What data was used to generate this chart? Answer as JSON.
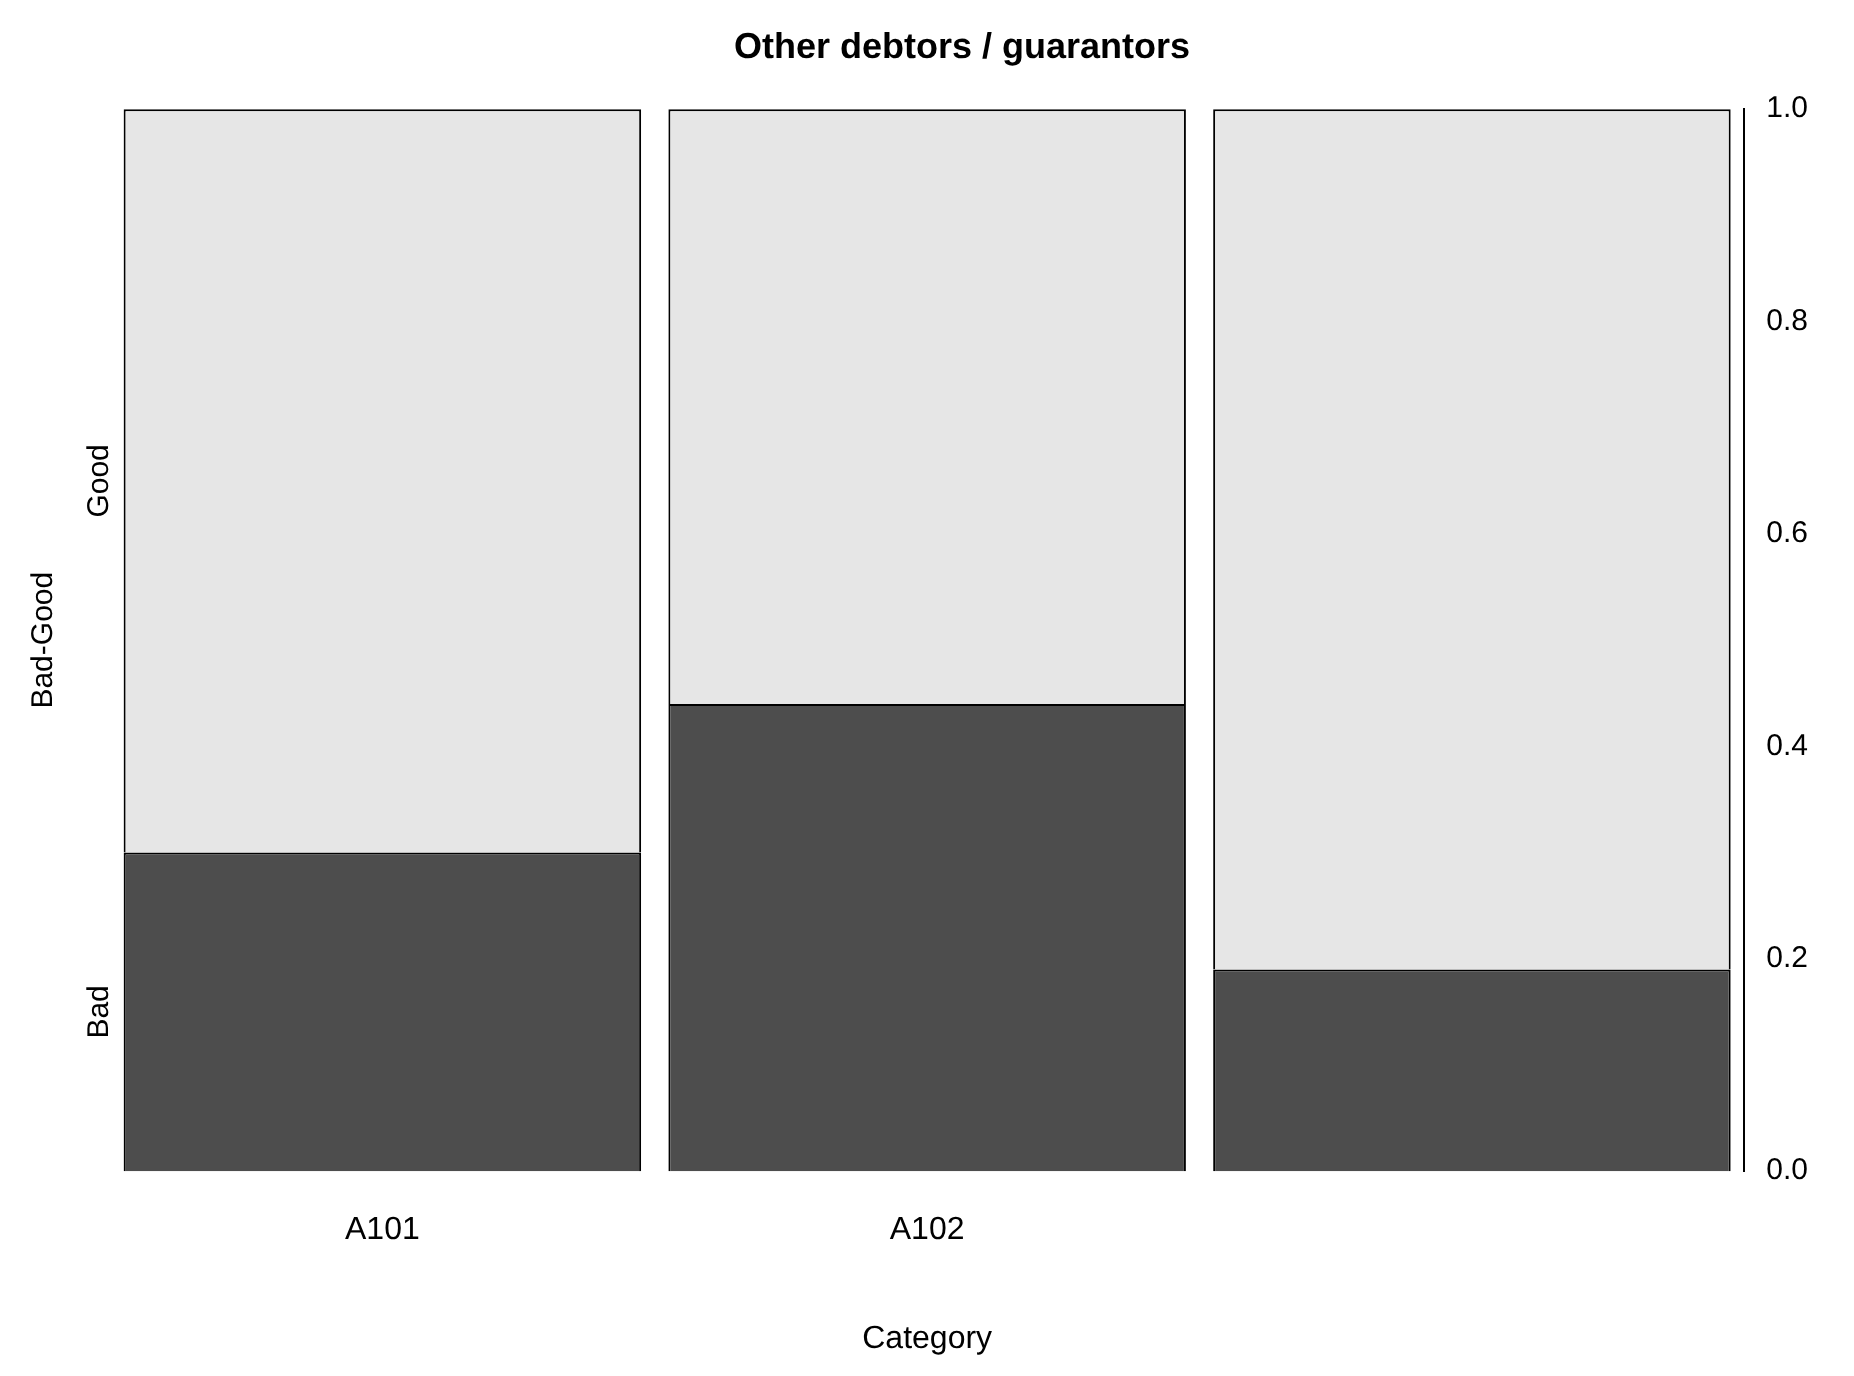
{
  "chart_data": {
    "type": "bar",
    "title": "Other debtors / guarantors",
    "xlabel": "Category",
    "ylabel": "Bad-Good",
    "categories": [
      "A101",
      "A102",
      null
    ],
    "stacked": true,
    "grid": false,
    "legend": false,
    "series": [
      {
        "name": "Bad",
        "color": "#4d4d4d",
        "values": [
          0.3,
          0.44,
          0.19
        ]
      },
      {
        "name": "Good",
        "color": "#e6e6e6",
        "values": [
          0.7,
          0.56,
          0.81
        ]
      }
    ],
    "ylim": [
      0,
      1
    ],
    "yticks": [
      {
        "value": 0,
        "label": "0.0"
      },
      {
        "value": 0.2,
        "label": "0.2"
      },
      {
        "value": 0.4,
        "label": "0.4"
      },
      {
        "value": 0.6,
        "label": "0.6"
      },
      {
        "value": 0.8,
        "label": "0.8"
      },
      {
        "value": 1,
        "label": "1.0"
      }
    ]
  }
}
